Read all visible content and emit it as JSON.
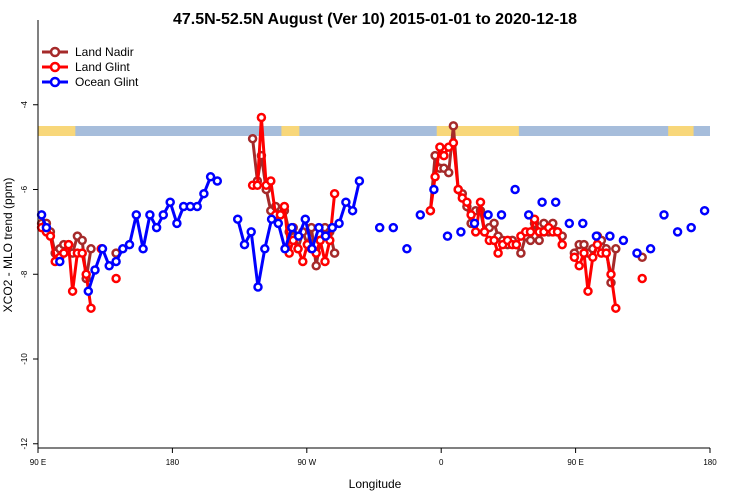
{
  "chart_data": {
    "type": "line",
    "title": "47.5N-52.5N August (Ver 10)   2015-01-01 to 2020-12-18",
    "xlabel": "Longitude",
    "ylabel": "XCO2 - MLO trend (ppm)",
    "x_ticks": [
      {
        "value": 90,
        "label": "90 E"
      },
      {
        "value": 180,
        "label": "180"
      },
      {
        "value": 270,
        "label": "90 W"
      },
      {
        "value": 360,
        "label": "0"
      },
      {
        "value": 450,
        "label": "90 E"
      },
      {
        "value": 540,
        "label": "180"
      }
    ],
    "y_ticks": [
      -4,
      -6,
      -8,
      -10,
      -12
    ],
    "xlim": [
      90,
      540
    ],
    "ylim": [
      -12.1,
      -2.0
    ],
    "grid": false,
    "legend_position": "top-left",
    "land_ocean_strip": {
      "land_color": "#f8d77a",
      "ocean_color": "#a6bddb"
    },
    "series": [
      {
        "name": "Land Nadir",
        "color": "#a52a2a",
        "points": [
          [
            92.4,
            -6.8
          ],
          [
            95.6,
            -6.8
          ],
          [
            98.3,
            -7.0
          ],
          [
            101.5,
            -7.5
          ],
          [
            104.6,
            -7.4
          ],
          [
            107.3,
            -7.3
          ],
          [
            110.5,
            -7.3
          ],
          [
            113.2,
            -7.5
          ],
          [
            116.4,
            -7.1
          ],
          [
            119.6,
            -7.2
          ],
          [
            122.3,
            -8.1
          ],
          [
            125.5,
            -7.4
          ],
          [
            142.3,
            -7.5
          ],
          [
            233.7,
            -4.8
          ],
          [
            236.9,
            -5.8
          ],
          [
            239.6,
            -5.2
          ],
          [
            242.8,
            -6.0
          ],
          [
            245.9,
            -6.5
          ],
          [
            249.1,
            -6.4
          ],
          [
            252.3,
            -6.6
          ],
          [
            255.0,
            -6.5
          ],
          [
            258.2,
            -7.0
          ],
          [
            260.9,
            -6.9
          ],
          [
            264.1,
            -7.4
          ],
          [
            267.3,
            -7.0
          ],
          [
            270.4,
            -7.3
          ],
          [
            273.1,
            -6.9
          ],
          [
            276.3,
            -7.8
          ],
          [
            279.0,
            -7.2
          ],
          [
            282.2,
            -6.9
          ],
          [
            285.4,
            -7.0
          ],
          [
            288.6,
            -7.5
          ],
          [
            352.8,
            -6.5
          ],
          [
            355.9,
            -5.2
          ],
          [
            359.1,
            -5.5
          ],
          [
            361.8,
            -5.5
          ],
          [
            365.0,
            -5.6
          ],
          [
            368.2,
            -4.5
          ],
          [
            371.4,
            -6.0
          ],
          [
            374.1,
            -6.1
          ],
          [
            377.2,
            -6.4
          ],
          [
            380.0,
            -6.8
          ],
          [
            383.1,
            -6.5
          ],
          [
            386.3,
            -6.5
          ],
          [
            389.0,
            -7.0
          ],
          [
            392.2,
            -6.9
          ],
          [
            395.4,
            -6.8
          ],
          [
            398.1,
            -7.1
          ],
          [
            401.2,
            -7.2
          ],
          [
            404.4,
            -7.3
          ],
          [
            407.6,
            -7.2
          ],
          [
            410.3,
            -7.3
          ],
          [
            413.4,
            -7.5
          ],
          [
            416.6,
            -7.1
          ],
          [
            419.8,
            -7.2
          ],
          [
            422.5,
            -6.8
          ],
          [
            425.6,
            -7.2
          ],
          [
            428.8,
            -6.8
          ],
          [
            432.0,
            -7.0
          ],
          [
            434.7,
            -6.8
          ],
          [
            437.9,
            -7.0
          ],
          [
            441.0,
            -7.1
          ],
          [
            449.2,
            -7.5
          ],
          [
            452.4,
            -7.3
          ],
          [
            455.6,
            -7.3
          ],
          [
            458.3,
            -7.5
          ],
          [
            461.5,
            -7.4
          ],
          [
            464.6,
            -7.1
          ],
          [
            467.3,
            -7.2
          ],
          [
            470.5,
            -7.4
          ],
          [
            473.7,
            -8.2
          ],
          [
            476.9,
            -7.4
          ],
          [
            494.6,
            -7.6
          ]
        ]
      },
      {
        "name": "Land Glint",
        "color": "#ff0000",
        "points": [
          [
            92.4,
            -6.9
          ],
          [
            95.6,
            -7.0
          ],
          [
            98.3,
            -7.1
          ],
          [
            101.5,
            -7.7
          ],
          [
            104.6,
            -7.6
          ],
          [
            107.3,
            -7.5
          ],
          [
            110.5,
            -7.3
          ],
          [
            113.2,
            -8.4
          ],
          [
            116.4,
            -7.5
          ],
          [
            119.6,
            -7.5
          ],
          [
            122.3,
            -8.0
          ],
          [
            125.5,
            -8.8
          ],
          [
            132.3,
            -7.4
          ],
          [
            142.3,
            -8.1
          ],
          [
            233.7,
            -5.9
          ],
          [
            236.9,
            -5.9
          ],
          [
            239.6,
            -4.3
          ],
          [
            242.8,
            -5.9
          ],
          [
            245.9,
            -5.8
          ],
          [
            249.1,
            -6.6
          ],
          [
            252.3,
            -6.6
          ],
          [
            255.0,
            -6.4
          ],
          [
            258.2,
            -7.5
          ],
          [
            260.9,
            -7.2
          ],
          [
            264.1,
            -7.4
          ],
          [
            267.3,
            -7.7
          ],
          [
            270.4,
            -7.3
          ],
          [
            273.1,
            -7.4
          ],
          [
            276.3,
            -7.5
          ],
          [
            279.0,
            -7.2
          ],
          [
            282.2,
            -7.7
          ],
          [
            285.4,
            -7.2
          ],
          [
            288.6,
            -6.1
          ],
          [
            352.8,
            -6.5
          ],
          [
            355.9,
            -5.7
          ],
          [
            359.1,
            -5.0
          ],
          [
            361.8,
            -5.2
          ],
          [
            365.0,
            -5.0
          ],
          [
            368.2,
            -4.9
          ],
          [
            371.4,
            -6.0
          ],
          [
            374.1,
            -6.2
          ],
          [
            377.2,
            -6.3
          ],
          [
            380.0,
            -6.6
          ],
          [
            383.1,
            -7.0
          ],
          [
            386.3,
            -6.3
          ],
          [
            389.0,
            -7.0
          ],
          [
            392.2,
            -7.2
          ],
          [
            395.4,
            -7.2
          ],
          [
            398.1,
            -7.5
          ],
          [
            401.2,
            -7.3
          ],
          [
            404.4,
            -7.2
          ],
          [
            407.6,
            -7.3
          ],
          [
            410.3,
            -7.3
          ],
          [
            413.4,
            -7.1
          ],
          [
            416.6,
            -7.0
          ],
          [
            419.8,
            -7.0
          ],
          [
            422.5,
            -6.7
          ],
          [
            425.6,
            -7.0
          ],
          [
            428.8,
            -7.0
          ],
          [
            432.0,
            -6.9
          ],
          [
            434.7,
            -7.0
          ],
          [
            437.9,
            -7.0
          ],
          [
            441.0,
            -7.3
          ],
          [
            449.2,
            -7.6
          ],
          [
            452.4,
            -7.8
          ],
          [
            455.6,
            -7.5
          ],
          [
            458.3,
            -8.4
          ],
          [
            461.5,
            -7.6
          ],
          [
            464.6,
            -7.3
          ],
          [
            467.3,
            -7.5
          ],
          [
            470.5,
            -7.5
          ],
          [
            473.7,
            -8.0
          ],
          [
            476.9,
            -8.8
          ],
          [
            494.6,
            -8.1
          ]
        ]
      },
      {
        "name": "Ocean Glint",
        "color": "#0000ff",
        "points": [
          [
            92.4,
            -6.6
          ],
          [
            95.6,
            -6.9
          ],
          [
            104.6,
            -7.7
          ],
          [
            123.7,
            -8.4
          ],
          [
            128.2,
            -7.9
          ],
          [
            133.2,
            -7.4
          ],
          [
            137.7,
            -7.8
          ],
          [
            142.3,
            -7.7
          ],
          [
            146.8,
            -7.4
          ],
          [
            151.3,
            -7.3
          ],
          [
            155.8,
            -6.6
          ],
          [
            160.4,
            -7.4
          ],
          [
            164.9,
            -6.6
          ],
          [
            169.4,
            -6.9
          ],
          [
            173.9,
            -6.6
          ],
          [
            178.5,
            -6.3
          ],
          [
            183.0,
            -6.8
          ],
          [
            187.5,
            -6.4
          ],
          [
            192.0,
            -6.4
          ],
          [
            196.6,
            -6.4
          ],
          [
            201.1,
            -6.1
          ],
          [
            205.6,
            -5.7
          ],
          [
            210.1,
            -5.8
          ],
          [
            223.7,
            -6.7
          ],
          [
            228.3,
            -7.3
          ],
          [
            232.8,
            -7.0
          ],
          [
            237.3,
            -8.3
          ],
          [
            241.9,
            -7.4
          ],
          [
            246.4,
            -6.7
          ],
          [
            250.9,
            -6.8
          ],
          [
            255.4,
            -7.4
          ],
          [
            260.0,
            -6.9
          ],
          [
            264.5,
            -7.1
          ],
          [
            269.0,
            -6.7
          ],
          [
            273.5,
            -7.4
          ],
          [
            278.1,
            -6.9
          ],
          [
            282.6,
            -7.1
          ],
          [
            287.1,
            -6.9
          ],
          [
            291.6,
            -6.8
          ],
          [
            296.2,
            -6.3
          ],
          [
            300.7,
            -6.5
          ],
          [
            305.2,
            -5.8
          ],
          [
            318.8,
            -6.9
          ],
          [
            327.9,
            -6.9
          ],
          [
            337.0,
            -7.4
          ],
          [
            346.0,
            -6.6
          ],
          [
            355.1,
            -6.0
          ],
          [
            364.2,
            -7.1
          ],
          [
            373.2,
            -7.0
          ],
          [
            382.3,
            -6.8
          ],
          [
            391.4,
            -6.6
          ],
          [
            400.4,
            -6.6
          ],
          [
            409.5,
            -6.0
          ],
          [
            418.6,
            -6.6
          ],
          [
            427.6,
            -6.3
          ],
          [
            436.7,
            -6.3
          ],
          [
            445.8,
            -6.8
          ],
          [
            454.8,
            -6.8
          ],
          [
            463.9,
            -7.1
          ],
          [
            473.0,
            -7.1
          ],
          [
            482.0,
            -7.2
          ],
          [
            491.1,
            -7.5
          ],
          [
            500.2,
            -7.4
          ],
          [
            509.2,
            -6.6
          ],
          [
            518.3,
            -7.0
          ],
          [
            527.4,
            -6.9
          ],
          [
            536.4,
            -6.5
          ]
        ]
      }
    ]
  }
}
